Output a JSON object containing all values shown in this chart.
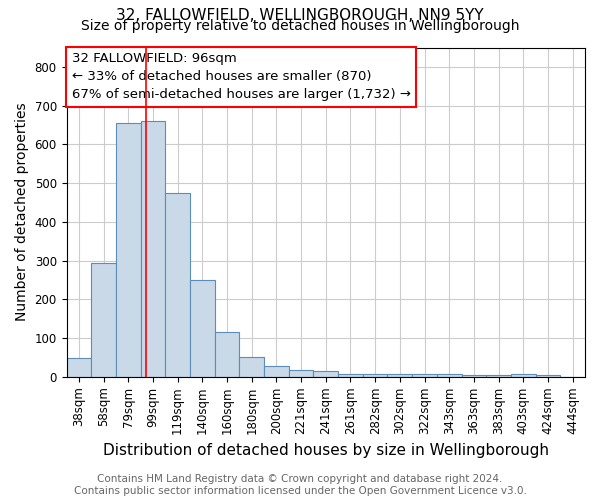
{
  "title_line1": "32, FALLOWFIELD, WELLINGBOROUGH, NN9 5YY",
  "title_line2": "Size of property relative to detached houses in Wellingborough",
  "xlabel": "Distribution of detached houses by size in Wellingborough",
  "ylabel": "Number of detached properties",
  "categories": [
    "38sqm",
    "58sqm",
    "79sqm",
    "99sqm",
    "119sqm",
    "140sqm",
    "160sqm",
    "180sqm",
    "200sqm",
    "221sqm",
    "241sqm",
    "261sqm",
    "282sqm",
    "302sqm",
    "322sqm",
    "343sqm",
    "363sqm",
    "383sqm",
    "403sqm",
    "424sqm",
    "444sqm"
  ],
  "values": [
    48,
    293,
    655,
    660,
    475,
    250,
    115,
    50,
    28,
    18,
    15,
    8,
    8,
    8,
    8,
    7,
    5,
    5,
    8,
    5,
    0
  ],
  "bar_color": "#c9d9e8",
  "bar_edge_color": "#5b8db8",
  "bar_edge_width": 0.8,
  "red_line_x": 2.72,
  "annotation_line1": "32 FALLOWFIELD: 96sqm",
  "annotation_line2": "← 33% of detached houses are smaller (870)",
  "annotation_line3": "67% of semi-detached houses are larger (1,732) →",
  "ylim": [
    0,
    850
  ],
  "yticks": [
    0,
    100,
    200,
    300,
    400,
    500,
    600,
    700,
    800
  ],
  "footer_text": "Contains HM Land Registry data © Crown copyright and database right 2024.\nContains public sector information licensed under the Open Government Licence v3.0.",
  "bg_color": "#ffffff",
  "grid_color": "#cccccc",
  "title_fontsize": 11,
  "subtitle_fontsize": 10,
  "xlabel_fontsize": 11,
  "ylabel_fontsize": 10,
  "tick_fontsize": 8.5,
  "annotation_fontsize": 9.5,
  "footer_fontsize": 7.5
}
